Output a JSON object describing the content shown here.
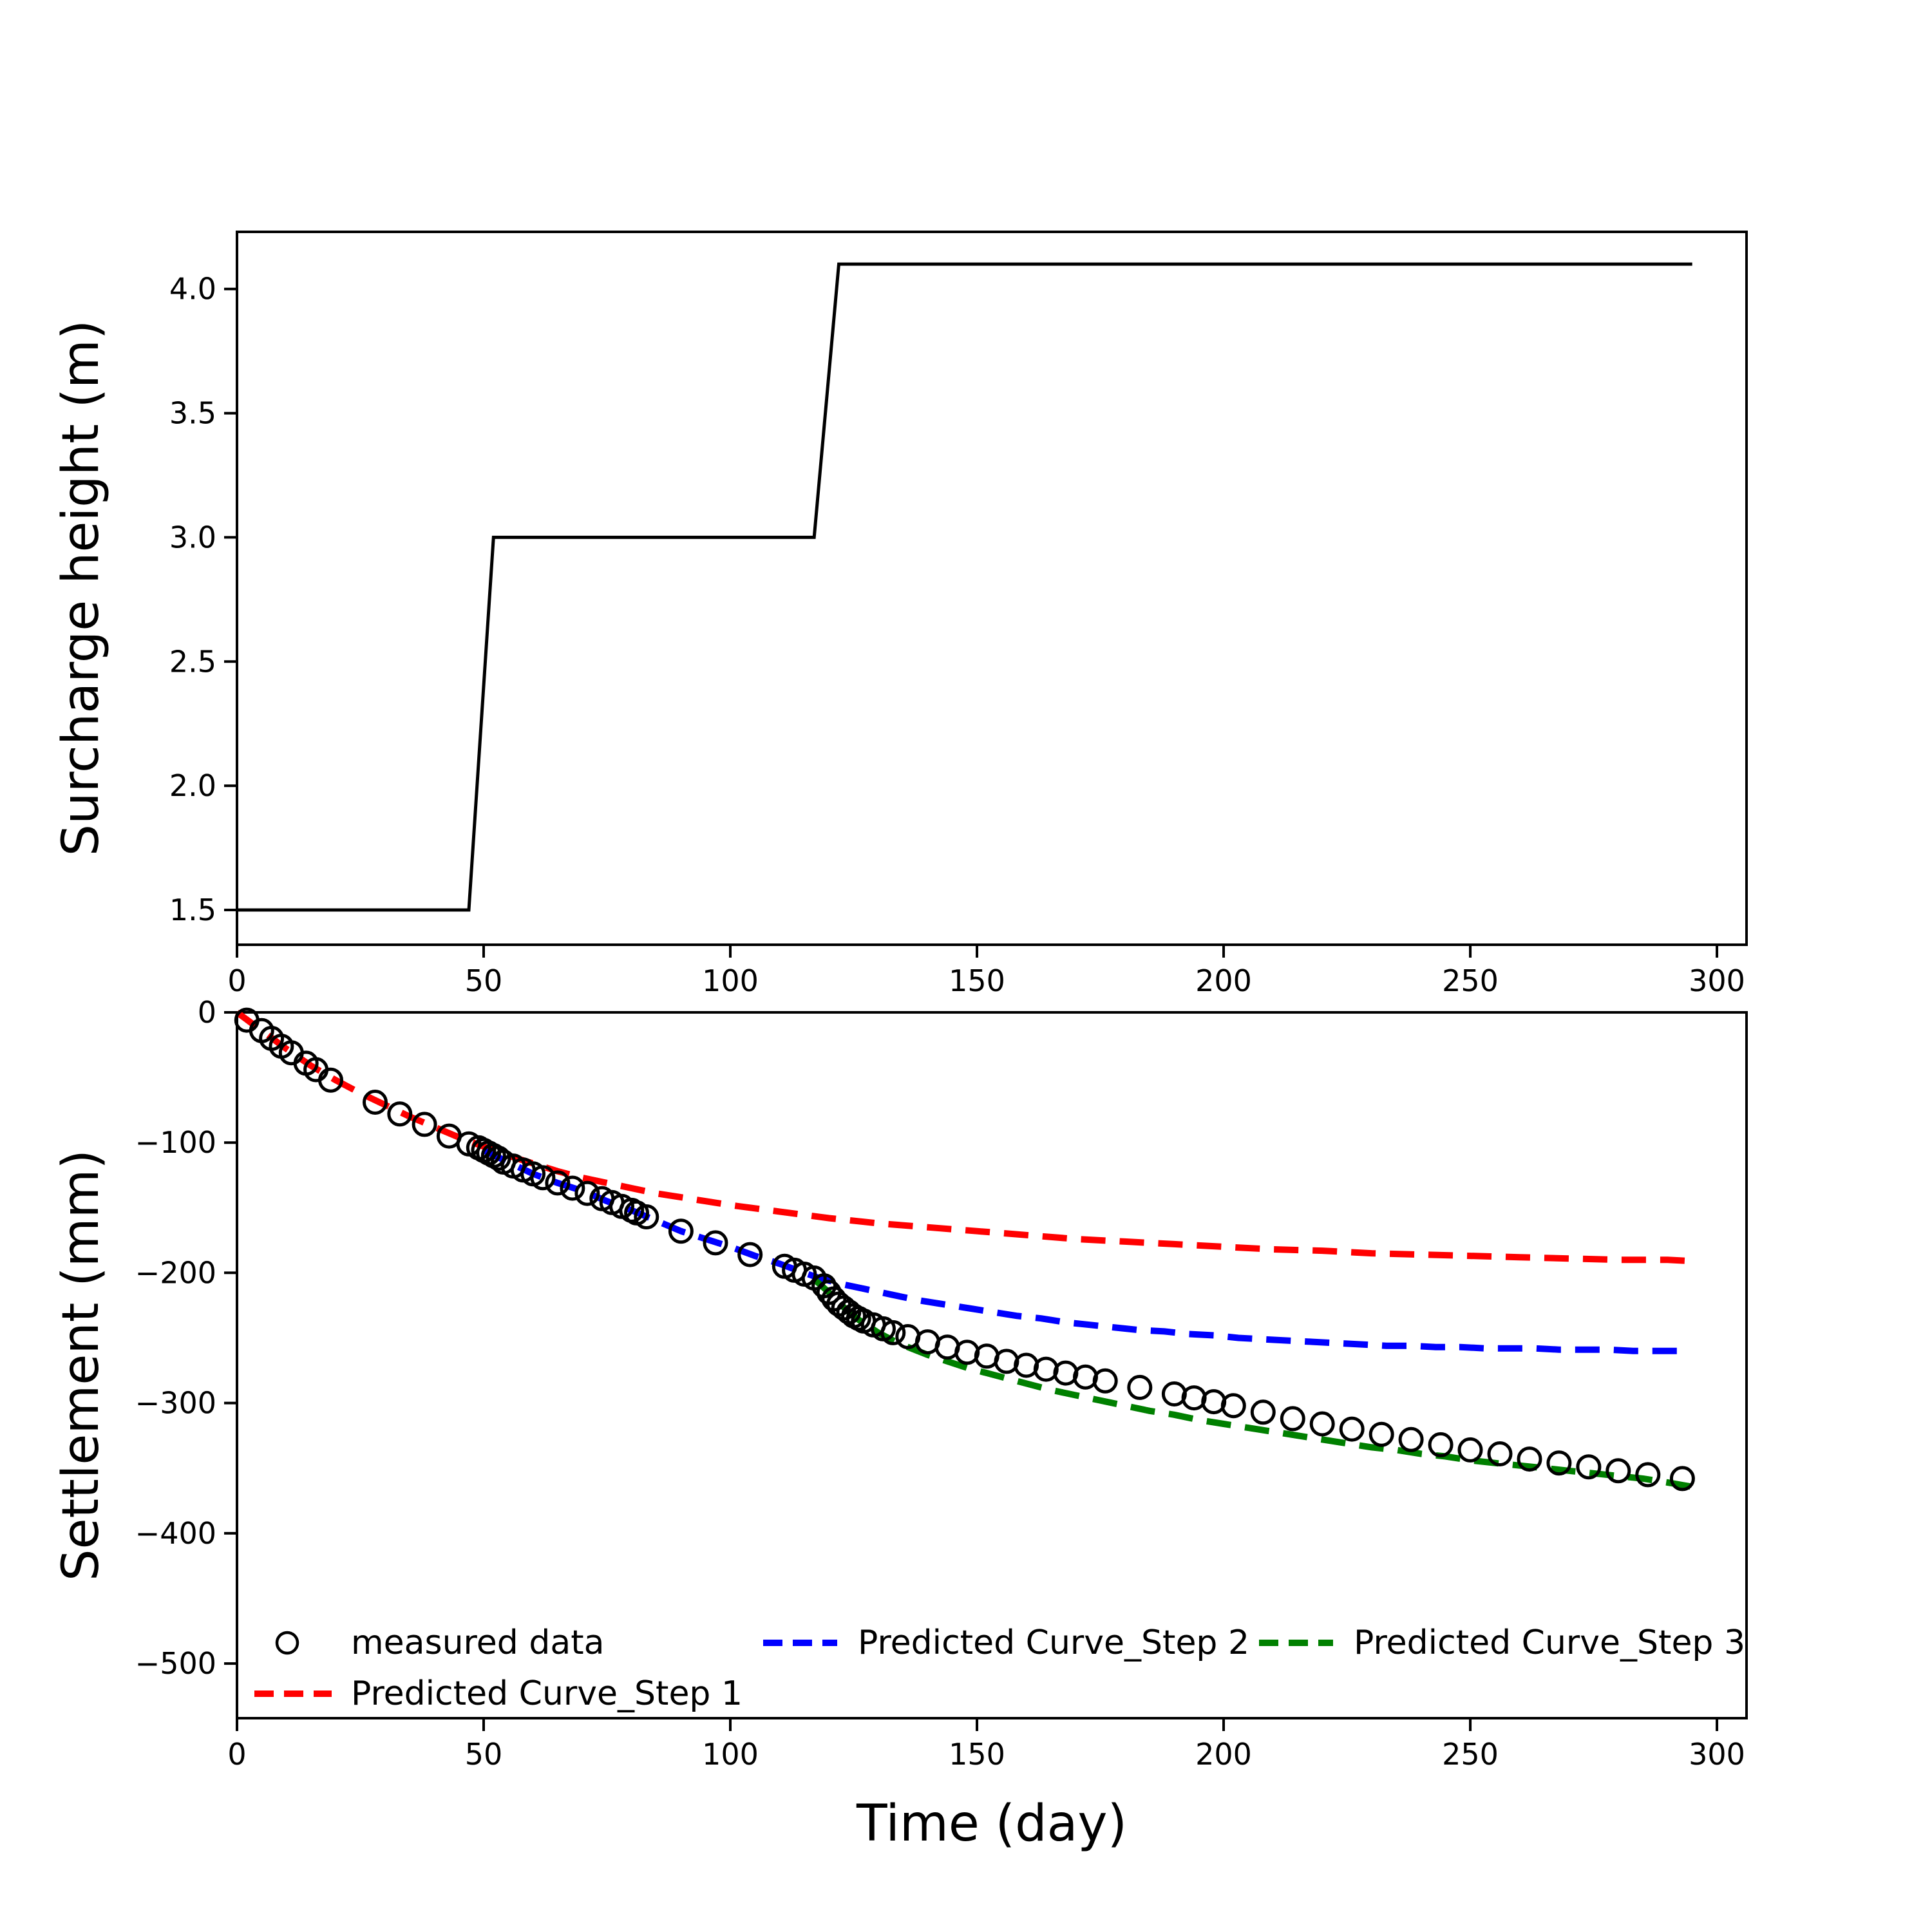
{
  "figure": {
    "background": "#ffffff"
  },
  "legend": {
    "measured_label": "measured data",
    "step1_label": "Predicted Curve_Step 1",
    "step2_label": "Predicted Curve_Step 2",
    "step3_label": "Predicted Curve_Step 3"
  },
  "colors": {
    "measured": "#000000",
    "step1": "#ff0000",
    "step2": "#0000ff",
    "step3": "#008000",
    "surcharge": "#000000"
  },
  "chart_data": [
    {
      "type": "line",
      "id": "surcharge",
      "title": "",
      "xlabel": "",
      "ylabel": "Surcharge height (m)",
      "xlim": [
        0,
        306
      ],
      "ylim": [
        1.36,
        4.23
      ],
      "xticks": [
        0,
        50,
        100,
        150,
        200,
        250,
        300
      ],
      "yticks": [
        1.5,
        2.0,
        2.5,
        3.0,
        3.5,
        4.0
      ],
      "grid": false,
      "series": [
        {
          "name": "surcharge-height-step-loading",
          "color": "#000000",
          "style": "solid",
          "points": [
            [
              0,
              1.5
            ],
            [
              47,
              1.5
            ],
            [
              52,
              3.0
            ],
            [
              117,
              3.0
            ],
            [
              122,
              4.1
            ],
            [
              295,
              4.1
            ]
          ]
        }
      ]
    },
    {
      "type": "scatter",
      "id": "settlement",
      "title": "",
      "xlabel": "Time (day)",
      "ylabel": "Settlement (mm)",
      "xlim": [
        0,
        306
      ],
      "ylim": [
        -542,
        0
      ],
      "xticks": [
        0,
        50,
        100,
        150,
        200,
        250,
        300
      ],
      "yticks": [
        0,
        -100,
        -200,
        -300,
        -400,
        -500
      ],
      "grid": false,
      "legend_position": "lower left, 3 columns, no frame",
      "measured": {
        "name": "measured data",
        "marker": "open-circle",
        "color": "#000000",
        "points": [
          [
            2,
            -6
          ],
          [
            5,
            -14
          ],
          [
            7,
            -20
          ],
          [
            9,
            -26
          ],
          [
            11,
            -31
          ],
          [
            14,
            -39
          ],
          [
            16,
            -44
          ],
          [
            19,
            -52
          ],
          [
            28,
            -69
          ],
          [
            33,
            -78
          ],
          [
            38,
            -86
          ],
          [
            43,
            -95
          ],
          [
            47,
            -101
          ],
          [
            49,
            -104
          ],
          [
            50,
            -106
          ],
          [
            51,
            -108
          ],
          [
            52,
            -110
          ],
          [
            53,
            -112
          ],
          [
            54,
            -115
          ],
          [
            56,
            -118
          ],
          [
            58,
            -121
          ],
          [
            60,
            -124
          ],
          [
            62,
            -127
          ],
          [
            65,
            -131
          ],
          [
            68,
            -135
          ],
          [
            71,
            -139
          ],
          [
            74,
            -143
          ],
          [
            76,
            -146
          ],
          [
            78,
            -149
          ],
          [
            80,
            -152
          ],
          [
            81,
            -154
          ],
          [
            83,
            -157
          ],
          [
            90,
            -168
          ],
          [
            97,
            -177
          ],
          [
            104,
            -186
          ],
          [
            111,
            -195
          ],
          [
            113,
            -198
          ],
          [
            115,
            -201
          ],
          [
            117,
            -204
          ],
          [
            119,
            -210
          ],
          [
            120,
            -215
          ],
          [
            121,
            -220
          ],
          [
            122,
            -224
          ],
          [
            123,
            -227
          ],
          [
            124,
            -230
          ],
          [
            125,
            -233
          ],
          [
            126,
            -235
          ],
          [
            127,
            -237
          ],
          [
            129,
            -240
          ],
          [
            131,
            -243
          ],
          [
            133,
            -246
          ],
          [
            136,
            -249
          ],
          [
            140,
            -253
          ],
          [
            144,
            -257
          ],
          [
            148,
            -261
          ],
          [
            152,
            -264
          ],
          [
            156,
            -268
          ],
          [
            160,
            -271
          ],
          [
            164,
            -274
          ],
          [
            168,
            -277
          ],
          [
            172,
            -280
          ],
          [
            176,
            -283
          ],
          [
            183,
            -288
          ],
          [
            190,
            -293
          ],
          [
            194,
            -296
          ],
          [
            198,
            -299
          ],
          [
            202,
            -302
          ],
          [
            208,
            -307
          ],
          [
            214,
            -312
          ],
          [
            220,
            -316
          ],
          [
            226,
            -320
          ],
          [
            232,
            -324
          ],
          [
            238,
            -328
          ],
          [
            244,
            -332
          ],
          [
            250,
            -336
          ],
          [
            256,
            -339
          ],
          [
            262,
            -343
          ],
          [
            268,
            -346
          ],
          [
            274,
            -349
          ],
          [
            280,
            -352
          ],
          [
            286,
            -355
          ],
          [
            293,
            -358
          ]
        ]
      },
      "series": [
        {
          "name": "Predicted Curve_Step 1",
          "color": "#ff0000",
          "style": "dashed",
          "points": [
            [
              0,
              0
            ],
            [
              5,
              -14
            ],
            [
              10,
              -28
            ],
            [
              15,
              -41
            ],
            [
              20,
              -52
            ],
            [
              25,
              -62
            ],
            [
              30,
              -71
            ],
            [
              35,
              -80
            ],
            [
              40,
              -88
            ],
            [
              45,
              -96
            ],
            [
              50,
              -103
            ],
            [
              55,
              -110
            ],
            [
              60,
              -116
            ],
            [
              65,
              -122
            ],
            [
              70,
              -127
            ],
            [
              75,
              -131
            ],
            [
              80,
              -135
            ],
            [
              85,
              -139
            ],
            [
              90,
              -142
            ],
            [
              95,
              -145
            ],
            [
              100,
              -148
            ],
            [
              110,
              -153
            ],
            [
              120,
              -158
            ],
            [
              130,
              -162
            ],
            [
              140,
              -165
            ],
            [
              150,
              -168
            ],
            [
              160,
              -171
            ],
            [
              170,
              -174
            ],
            [
              180,
              -176
            ],
            [
              190,
              -178
            ],
            [
              200,
              -180
            ],
            [
              210,
              -182
            ],
            [
              220,
              -183
            ],
            [
              230,
              -185
            ],
            [
              240,
              -186
            ],
            [
              250,
              -187
            ],
            [
              260,
              -188
            ],
            [
              270,
              -189
            ],
            [
              280,
              -190
            ],
            [
              290,
              -190
            ],
            [
              295,
              -191
            ]
          ]
        },
        {
          "name": "Predicted Curve_Step 2",
          "color": "#0000ff",
          "style": "dashed",
          "points": [
            [
              50,
              -106
            ],
            [
              55,
              -115
            ],
            [
              60,
              -124
            ],
            [
              65,
              -131
            ],
            [
              70,
              -137
            ],
            [
              75,
              -145
            ],
            [
              80,
              -152
            ],
            [
              85,
              -160
            ],
            [
              90,
              -168
            ],
            [
              95,
              -174
            ],
            [
              100,
              -180
            ],
            [
              105,
              -187
            ],
            [
              110,
              -193
            ],
            [
              115,
              -200
            ],
            [
              118,
              -204
            ],
            [
              123,
              -209
            ],
            [
              128,
              -213
            ],
            [
              133,
              -217
            ],
            [
              138,
              -221
            ],
            [
              143,
              -224
            ],
            [
              148,
              -227
            ],
            [
              153,
              -230
            ],
            [
              158,
              -233
            ],
            [
              163,
              -235
            ],
            [
              168,
              -238
            ],
            [
              173,
              -240
            ],
            [
              178,
              -242
            ],
            [
              183,
              -244
            ],
            [
              188,
              -245
            ],
            [
              193,
              -247
            ],
            [
              198,
              -248
            ],
            [
              203,
              -250
            ],
            [
              208,
              -251
            ],
            [
              213,
              -252
            ],
            [
              218,
              -253
            ],
            [
              223,
              -254
            ],
            [
              228,
              -255
            ],
            [
              233,
              -256
            ],
            [
              238,
              -256
            ],
            [
              243,
              -257
            ],
            [
              248,
              -257
            ],
            [
              253,
              -258
            ],
            [
              258,
              -258
            ],
            [
              263,
              -258
            ],
            [
              268,
              -259
            ],
            [
              273,
              -259
            ],
            [
              278,
              -259
            ],
            [
              283,
              -260
            ],
            [
              288,
              -260
            ],
            [
              293,
              -260
            ]
          ]
        },
        {
          "name": "Predicted Curve_Step 3",
          "color": "#008000",
          "style": "dashed",
          "points": [
            [
              117,
              -205
            ],
            [
              120,
              -215
            ],
            [
              122,
              -223
            ],
            [
              124,
              -230
            ],
            [
              126,
              -236
            ],
            [
              128,
              -241
            ],
            [
              130,
              -246
            ],
            [
              133,
              -252
            ],
            [
              136,
              -257
            ],
            [
              140,
              -263
            ],
            [
              144,
              -268
            ],
            [
              148,
              -273
            ],
            [
              152,
              -277
            ],
            [
              156,
              -281
            ],
            [
              160,
              -285
            ],
            [
              165,
              -290
            ],
            [
              170,
              -294
            ],
            [
              175,
              -298
            ],
            [
              180,
              -302
            ],
            [
              185,
              -306
            ],
            [
              190,
              -309
            ],
            [
              195,
              -313
            ],
            [
              200,
              -316
            ],
            [
              205,
              -319
            ],
            [
              210,
              -322
            ],
            [
              215,
              -325
            ],
            [
              220,
              -328
            ],
            [
              225,
              -331
            ],
            [
              230,
              -334
            ],
            [
              235,
              -336
            ],
            [
              240,
              -339
            ],
            [
              245,
              -341
            ],
            [
              250,
              -344
            ],
            [
              255,
              -346
            ],
            [
              260,
              -348
            ],
            [
              265,
              -350
            ],
            [
              270,
              -352
            ],
            [
              275,
              -354
            ],
            [
              280,
              -356
            ],
            [
              285,
              -358
            ],
            [
              290,
              -361
            ],
            [
              293,
              -363
            ],
            [
              296,
              -365
            ]
          ]
        }
      ]
    }
  ]
}
